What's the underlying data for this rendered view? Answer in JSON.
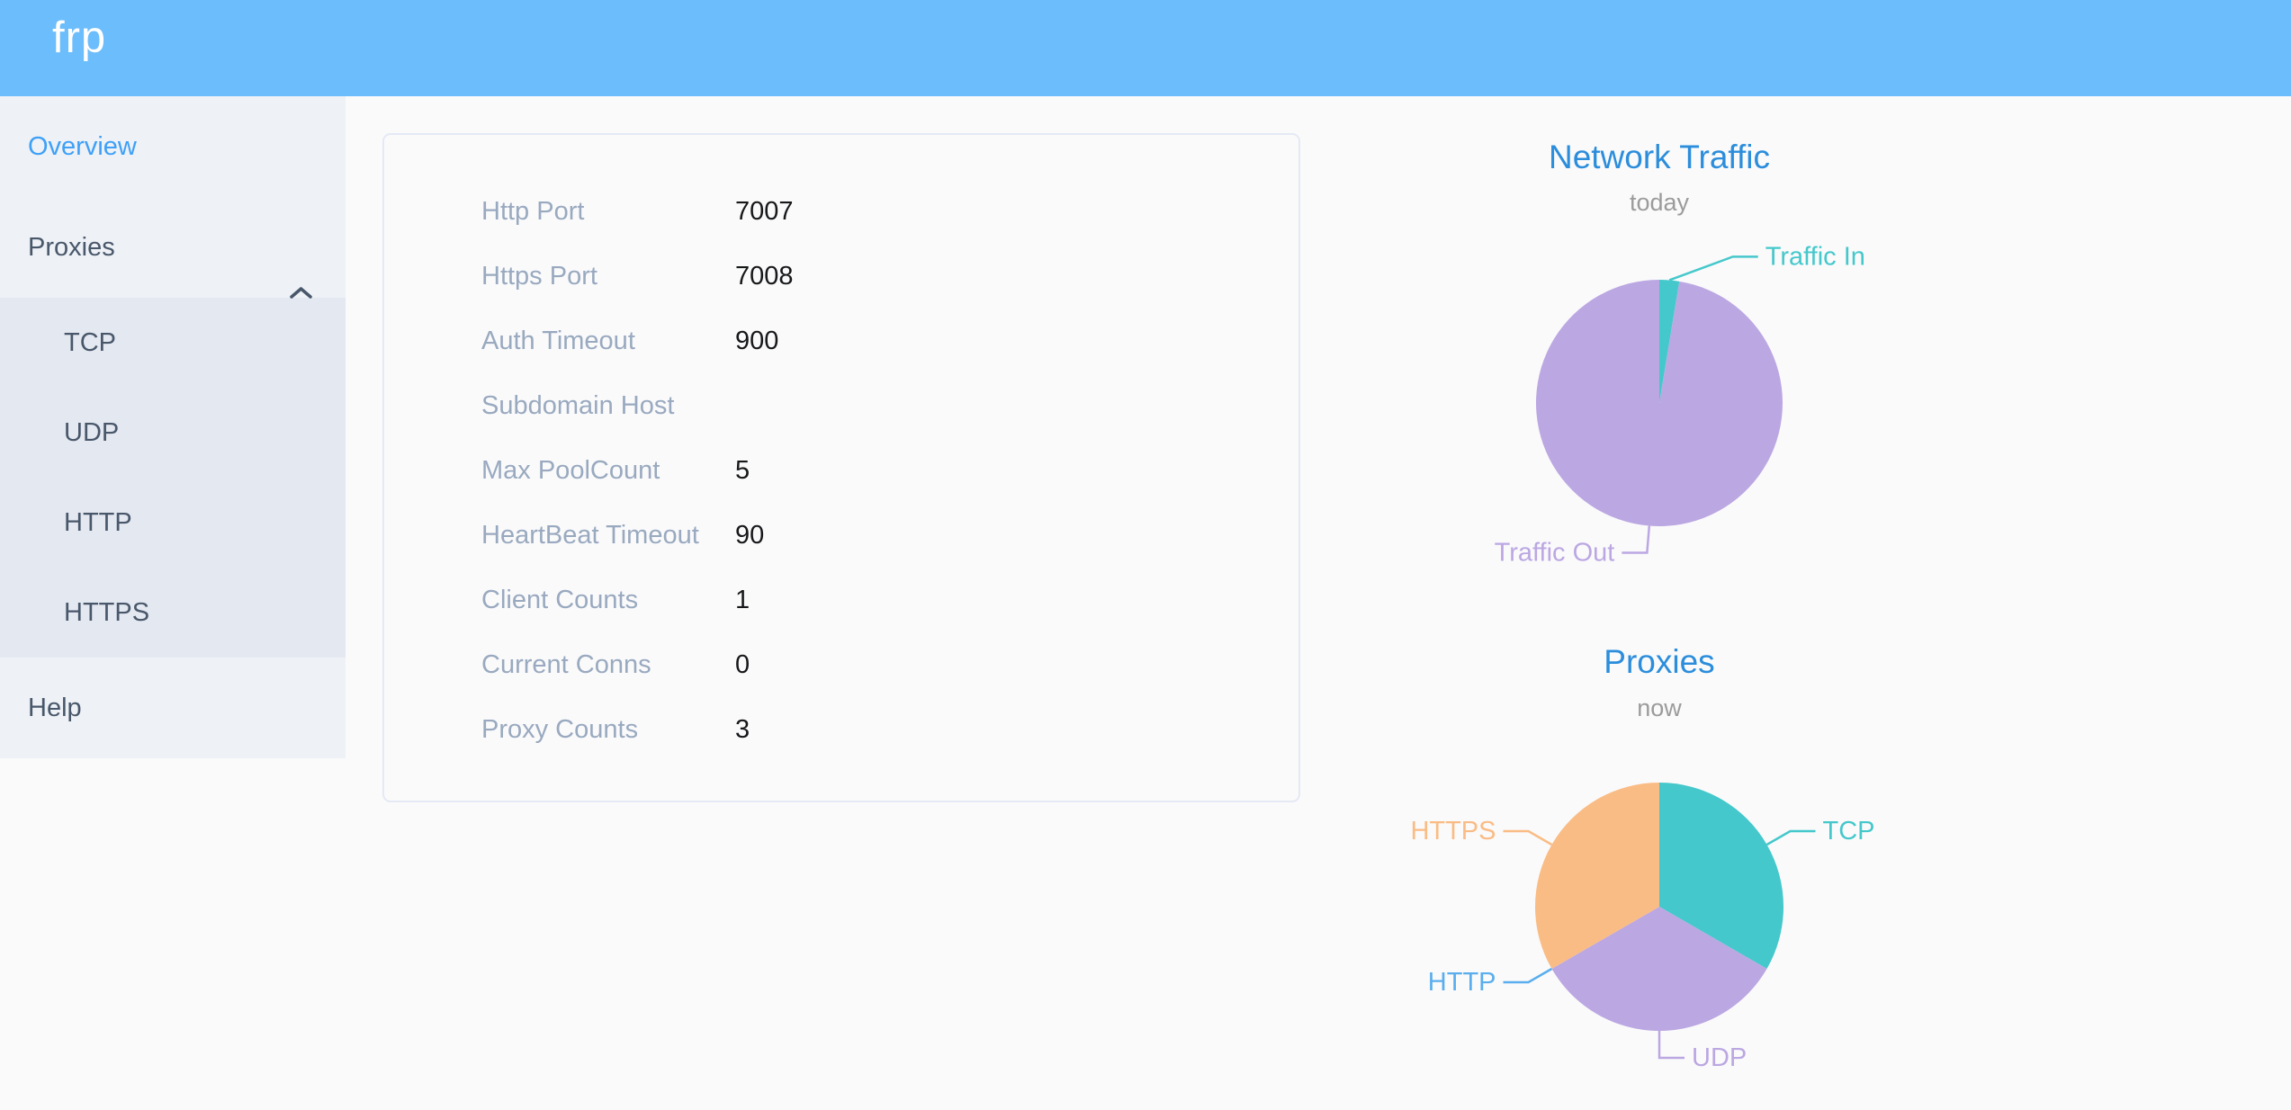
{
  "header": {
    "logo": "frp"
  },
  "sidebar": {
    "items": [
      {
        "label": "Overview",
        "active": true
      },
      {
        "label": "Proxies",
        "expanded": true
      },
      {
        "label": "TCP",
        "submenu_of": "Proxies"
      },
      {
        "label": "UDP",
        "submenu_of": "Proxies"
      },
      {
        "label": "HTTP",
        "submenu_of": "Proxies"
      },
      {
        "label": "HTTPS",
        "submenu_of": "Proxies"
      },
      {
        "label": "Help"
      }
    ]
  },
  "server_info": {
    "rows": [
      {
        "label": "Http Port",
        "value": "7007"
      },
      {
        "label": "Https Port",
        "value": "7008"
      },
      {
        "label": "Auth Timeout",
        "value": "900"
      },
      {
        "label": "Subdomain Host",
        "value": ""
      },
      {
        "label": "Max PoolCount",
        "value": "5"
      },
      {
        "label": "HeartBeat Timeout",
        "value": "90"
      },
      {
        "label": "Client Counts",
        "value": "1"
      },
      {
        "label": "Current Conns",
        "value": "0"
      },
      {
        "label": "Proxy Counts",
        "value": "3"
      }
    ]
  },
  "colors": {
    "header_bg": "#6cbdfb",
    "sidebar_bg": "#eef1f6",
    "submenu_bg": "#e4e8f1",
    "active_menu_item": "#3ea0f7",
    "chart_title": "#2b8ddb",
    "teal": "#45c8cb",
    "purple": "#bba7e2",
    "blue": "#5aaeed",
    "orange": "#fabc85"
  },
  "chart_data": [
    {
      "type": "pie",
      "title": "Network Traffic",
      "subtitle": "today",
      "value_unit": "percent (estimated from arc angles)",
      "legend_position": "outside-labels-with-lines",
      "slices": [
        {
          "name": "Traffic In",
          "value": 2.6,
          "color": "#45c8cb"
        },
        {
          "name": "Traffic Out",
          "value": 97.4,
          "color": "#bba7e2"
        }
      ]
    },
    {
      "type": "pie",
      "title": "Proxies",
      "subtitle": "now",
      "value_unit": "count",
      "legend_position": "outside-labels-with-lines",
      "slices": [
        {
          "name": "TCP",
          "value": 1,
          "color": "#45c8cb"
        },
        {
          "name": "UDP",
          "value": 1,
          "color": "#bba7e2"
        },
        {
          "name": "HTTP",
          "value": 0,
          "color": "#5aaeed"
        },
        {
          "name": "HTTPS",
          "value": 1,
          "color": "#fabc85"
        }
      ]
    }
  ]
}
